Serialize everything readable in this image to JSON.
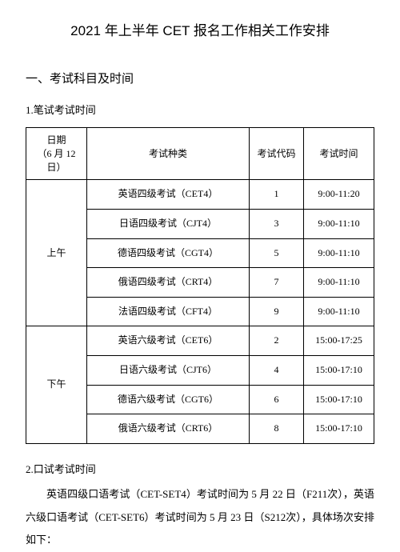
{
  "title": "2021 年上半年 CET 报名工作相关工作安排",
  "section1_heading": "一、考试科目及时间",
  "written_heading": "1.笔试考试时间",
  "table": {
    "headers": {
      "date_line1": "日期",
      "date_line2": "（6 月 12 日）",
      "type": "考试种类",
      "code": "考试代码",
      "time": "考试时间"
    },
    "sessions": [
      {
        "label": "上午",
        "rows": [
          {
            "type": "英语四级考试（CET4）",
            "code": "1",
            "time": "9:00-11:20"
          },
          {
            "type": "日语四级考试（CJT4）",
            "code": "3",
            "time": "9:00-11:10"
          },
          {
            "type": "德语四级考试（CGT4）",
            "code": "5",
            "time": "9:00-11:10"
          },
          {
            "type": "俄语四级考试（CRT4）",
            "code": "7",
            "time": "9:00-11:10"
          },
          {
            "type": "法语四级考试（CFT4）",
            "code": "9",
            "time": "9:00-11:10"
          }
        ]
      },
      {
        "label": "下午",
        "rows": [
          {
            "type": "英语六级考试（CET6）",
            "code": "2",
            "time": "15:00-17:25"
          },
          {
            "type": "日语六级考试（CJT6）",
            "code": "4",
            "time": "15:00-17:10"
          },
          {
            "type": "德语六级考试（CGT6）",
            "code": "6",
            "time": "15:00-17:10"
          },
          {
            "type": "俄语六级考试（CRT6）",
            "code": "8",
            "time": "15:00-17:10"
          }
        ]
      }
    ]
  },
  "oral_heading": "2.口试考试时间",
  "oral_paragraph": "英语四级口语考试（CET-SET4）考试时间为 5 月 22 日（F211次），英语六级口语考试（CET-SET6）考试时间为 5 月 23 日（S212次），具体场次安排如下："
}
